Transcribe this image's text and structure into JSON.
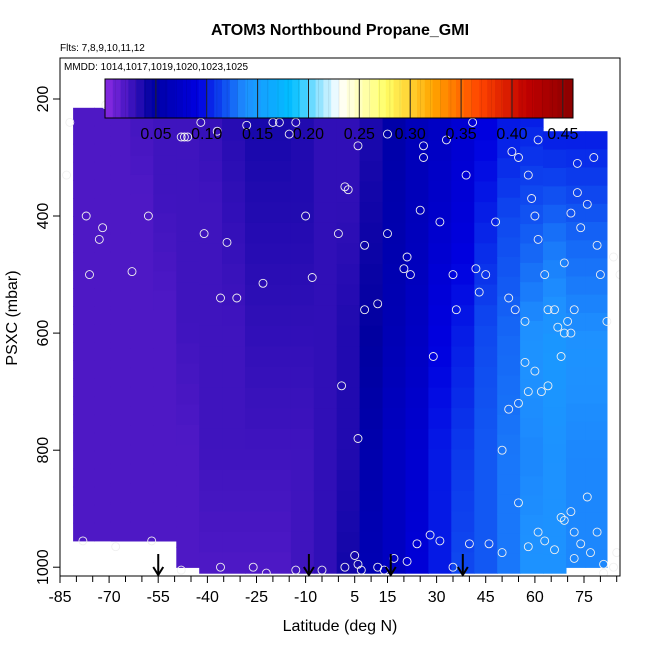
{
  "chart_data": {
    "type": "heatmap",
    "title": "ATOM3 Northbound Propane_GMI",
    "flights_note": "Flts: 7,8,9,10,11,12",
    "dates_note": "MMDD: 1014,1017,1019,1020,1023,1025",
    "xlabel": "Latitude (deg N)",
    "ylabel": "PSXC (mbar)",
    "xlim": [
      -85,
      86
    ],
    "ylim": [
      1015,
      130
    ],
    "y_reversed": true,
    "xticks": [
      -85,
      -70,
      -55,
      -40,
      -25,
      -10,
      5,
      15,
      30,
      45,
      60,
      75
    ],
    "xtick_labels": [
      "-85",
      "-70",
      "-55",
      "-40",
      "-25",
      "-10",
      "5",
      "15",
      "30",
      "45",
      "60",
      "75"
    ],
    "yticks": [
      200,
      400,
      600,
      800,
      1000
    ],
    "ytick_labels": [
      "200",
      "400",
      "600",
      "800",
      "1000"
    ],
    "colorbar": {
      "range": [
        0,
        0.46
      ],
      "ticks": [
        0.05,
        0.1,
        0.15,
        0.2,
        0.25,
        0.3,
        0.35,
        0.4,
        0.45
      ],
      "tick_labels": [
        "0.05",
        "0.10",
        "0.15",
        "0.20",
        "0.25",
        "0.30",
        "0.35",
        "0.40",
        "0.45"
      ],
      "colors": [
        "#8a2be2",
        "#0000a0",
        "#0000e0",
        "#1e90ff",
        "#00bfff",
        "#ffffff",
        "#ffff66",
        "#ffa500",
        "#ff4500",
        "#c00000",
        "#8b0000"
      ]
    },
    "grid": false,
    "colorbar_position": "top",
    "profile_columns": [
      {
        "lat": -77,
        "ptop": 215,
        "pbot": 955,
        "vals": [
          0.02,
          0.02,
          0.02,
          0.02,
          0.02
        ]
      },
      {
        "lat": -72,
        "ptop": 215,
        "pbot": 955,
        "vals": [
          0.02,
          0.02,
          0.02,
          0.02,
          0.02
        ]
      },
      {
        "lat": -67,
        "ptop": 165,
        "pbot": 955,
        "vals": [
          0.02,
          0.02,
          0.02,
          0.02,
          0.02
        ]
      },
      {
        "lat": -60,
        "ptop": 165,
        "pbot": 955,
        "vals": [
          0.025,
          0.02,
          0.02,
          0.02,
          0.02
        ]
      },
      {
        "lat": -53,
        "ptop": 165,
        "pbot": 955,
        "vals": [
          0.025,
          0.025,
          0.02,
          0.02,
          0.02
        ]
      },
      {
        "lat": -46,
        "ptop": 165,
        "pbot": 1000,
        "vals": [
          0.025,
          0.025,
          0.025,
          0.02,
          0.02
        ]
      },
      {
        "lat": -39,
        "ptop": 165,
        "pbot": 1010,
        "vals": [
          0.03,
          0.025,
          0.025,
          0.025,
          0.02
        ]
      },
      {
        "lat": -32,
        "ptop": 165,
        "pbot": 1010,
        "vals": [
          0.035,
          0.03,
          0.025,
          0.025,
          0.02
        ]
      },
      {
        "lat": -25,
        "ptop": 165,
        "pbot": 1010,
        "vals": [
          0.04,
          0.035,
          0.03,
          0.025,
          0.02
        ]
      },
      {
        "lat": -18,
        "ptop": 165,
        "pbot": 1010,
        "vals": [
          0.04,
          0.035,
          0.03,
          0.025,
          0.02
        ]
      },
      {
        "lat": -11,
        "ptop": 165,
        "pbot": 1010,
        "vals": [
          0.035,
          0.035,
          0.03,
          0.025,
          0.025
        ]
      },
      {
        "lat": -4,
        "ptop": 165,
        "pbot": 1010,
        "vals": [
          0.03,
          0.03,
          0.03,
          0.03,
          0.03
        ]
      },
      {
        "lat": 3,
        "ptop": 165,
        "pbot": 1010,
        "vals": [
          0.03,
          0.03,
          0.035,
          0.035,
          0.04
        ]
      },
      {
        "lat": 10,
        "ptop": 165,
        "pbot": 1010,
        "vals": [
          0.035,
          0.04,
          0.045,
          0.055,
          0.06
        ]
      },
      {
        "lat": 17,
        "ptop": 165,
        "pbot": 1010,
        "vals": [
          0.05,
          0.055,
          0.06,
          0.07,
          0.07
        ]
      },
      {
        "lat": 24,
        "ptop": 165,
        "pbot": 1010,
        "vals": [
          0.065,
          0.065,
          0.07,
          0.08,
          0.085
        ]
      },
      {
        "lat": 31,
        "ptop": 165,
        "pbot": 1010,
        "vals": [
          0.07,
          0.075,
          0.09,
          0.1,
          0.1
        ]
      },
      {
        "lat": 38,
        "ptop": 165,
        "pbot": 1010,
        "vals": [
          0.08,
          0.085,
          0.1,
          0.11,
          0.115
        ]
      },
      {
        "lat": 45,
        "ptop": 165,
        "pbot": 1010,
        "vals": [
          0.085,
          0.1,
          0.115,
          0.12,
          0.12
        ]
      },
      {
        "lat": 52,
        "ptop": 200,
        "pbot": 1010,
        "vals": [
          0.095,
          0.115,
          0.125,
          0.13,
          0.13
        ]
      },
      {
        "lat": 59,
        "ptop": 215,
        "pbot": 1010,
        "vals": [
          0.1,
          0.12,
          0.14,
          0.135,
          0.14
        ]
      },
      {
        "lat": 66,
        "ptop": 255,
        "pbot": 1010,
        "vals": [
          0.1,
          0.13,
          0.145,
          0.14,
          0.14
        ]
      },
      {
        "lat": 73,
        "ptop": 255,
        "pbot": 1000,
        "vals": [
          0.1,
          0.125,
          0.14,
          0.135,
          0.135
        ]
      },
      {
        "lat": 78,
        "ptop": 255,
        "pbot": 1000,
        "vals": [
          0.1,
          0.125,
          0.14,
          0.135,
          0.135
        ]
      }
    ],
    "observations": [
      [
        -83,
        330
      ],
      [
        -82,
        240
      ],
      [
        -77,
        400
      ],
      [
        -73,
        440
      ],
      [
        -72,
        420
      ],
      [
        -76,
        500
      ],
      [
        -71,
        210
      ],
      [
        -69,
        210
      ],
      [
        -63,
        495
      ],
      [
        -58,
        400
      ],
      [
        -52,
        185
      ],
      [
        -48,
        265
      ],
      [
        -47,
        265
      ],
      [
        -46,
        265
      ],
      [
        -42,
        240
      ],
      [
        -41,
        430
      ],
      [
        -37,
        255
      ],
      [
        -36,
        540
      ],
      [
        -34,
        445
      ],
      [
        -31,
        540
      ],
      [
        -28,
        245
      ],
      [
        -25,
        210
      ],
      [
        -23,
        515
      ],
      [
        -20,
        240
      ],
      [
        -18,
        240
      ],
      [
        -15,
        260
      ],
      [
        -13,
        240
      ],
      [
        -10,
        400
      ],
      [
        -8,
        505
      ],
      [
        -7,
        220
      ],
      [
        -3,
        200
      ],
      [
        -1,
        195
      ],
      [
        0,
        430
      ],
      [
        2,
        350
      ],
      [
        3,
        355
      ],
      [
        6,
        280
      ],
      [
        8,
        560
      ],
      [
        8,
        450
      ],
      [
        11,
        200
      ],
      [
        12,
        550
      ],
      [
        15,
        260
      ],
      [
        15,
        430
      ],
      [
        19,
        210
      ],
      [
        20,
        490
      ],
      [
        21,
        470
      ],
      [
        22,
        500
      ],
      [
        25,
        390
      ],
      [
        26,
        280
      ],
      [
        26,
        300
      ],
      [
        29,
        640
      ],
      [
        30,
        195
      ],
      [
        31,
        410
      ],
      [
        33,
        270
      ],
      [
        35,
        500
      ],
      [
        36,
        560
      ],
      [
        39,
        330
      ],
      [
        41,
        240
      ],
      [
        42,
        490
      ],
      [
        43,
        530
      ],
      [
        45,
        500
      ],
      [
        48,
        210
      ],
      [
        48,
        410
      ],
      [
        50,
        200
      ],
      [
        52,
        540
      ],
      [
        53,
        290
      ],
      [
        54,
        560
      ],
      [
        55,
        300
      ],
      [
        57,
        580
      ],
      [
        58,
        330
      ],
      [
        59,
        370
      ],
      [
        60,
        400
      ],
      [
        61,
        270
      ],
      [
        61,
        440
      ],
      [
        63,
        500
      ],
      [
        64,
        560
      ],
      [
        66,
        560
      ],
      [
        67,
        590
      ],
      [
        68,
        640
      ],
      [
        69,
        480
      ],
      [
        69,
        600
      ],
      [
        70,
        580
      ],
      [
        71,
        600
      ],
      [
        72,
        560
      ],
      [
        71,
        395
      ],
      [
        73,
        310
      ],
      [
        73,
        360
      ],
      [
        74,
        420
      ],
      [
        76,
        380
      ],
      [
        78,
        300
      ],
      [
        79,
        450
      ],
      [
        80,
        500
      ],
      [
        82,
        580
      ],
      [
        84,
        470
      ],
      [
        86,
        500
      ],
      [
        -78,
        955
      ],
      [
        -68,
        965
      ],
      [
        -57,
        955
      ],
      [
        -48,
        1005
      ],
      [
        -36,
        1000
      ],
      [
        -26,
        1000
      ],
      [
        -22,
        1010
      ],
      [
        -13,
        1005
      ],
      [
        -5,
        1005
      ],
      [
        2,
        1000
      ],
      [
        5,
        980
      ],
      [
        6,
        995
      ],
      [
        7,
        1005
      ],
      [
        12,
        1000
      ],
      [
        14,
        1005
      ],
      [
        17,
        985
      ],
      [
        21,
        990
      ],
      [
        24,
        960
      ],
      [
        28,
        945
      ],
      [
        31,
        955
      ],
      [
        35,
        1000
      ],
      [
        40,
        960
      ],
      [
        46,
        960
      ],
      [
        50,
        975
      ],
      [
        55,
        890
      ],
      [
        58,
        965
      ],
      [
        61,
        940
      ],
      [
        63,
        955
      ],
      [
        66,
        970
      ],
      [
        68,
        915
      ],
      [
        69,
        920
      ],
      [
        71,
        905
      ],
      [
        72,
        940
      ],
      [
        72,
        985
      ],
      [
        74,
        960
      ],
      [
        76,
        880
      ],
      [
        77,
        975
      ],
      [
        79,
        940
      ],
      [
        81,
        995
      ],
      [
        85,
        975
      ],
      [
        84,
        1000
      ],
      [
        81,
        1010
      ],
      [
        64,
        690
      ],
      [
        62,
        700
      ],
      [
        60,
        665
      ],
      [
        58,
        700
      ],
      [
        57,
        650
      ],
      [
        55,
        720
      ],
      [
        52,
        730
      ],
      [
        50,
        800
      ],
      [
        6,
        780
      ],
      [
        1,
        690
      ]
    ],
    "flight_markers_lat": [
      -55,
      -9,
      16,
      38
    ]
  }
}
